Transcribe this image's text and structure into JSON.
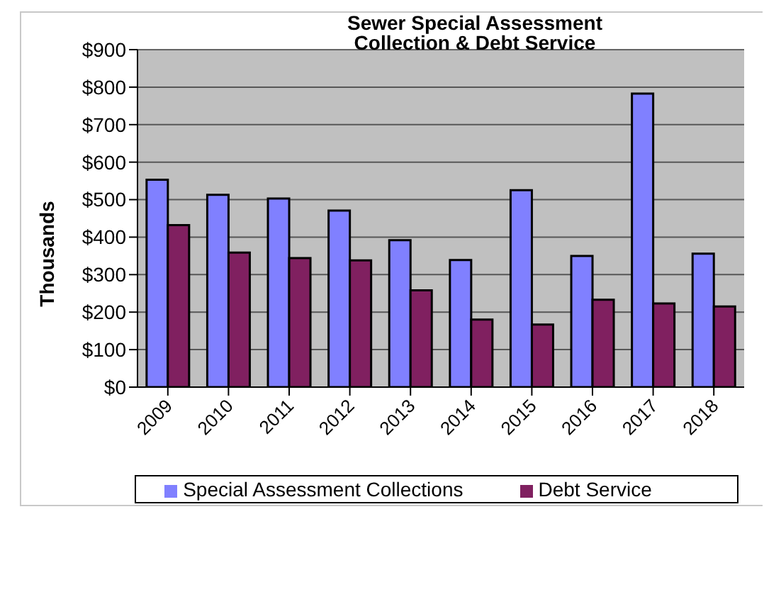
{
  "chart_data": {
    "type": "bar",
    "title": "Sewer Special Assessment\nCollection & Debt Service",
    "ylabel": "Thousands",
    "categories": [
      "2009",
      "2010",
      "2011",
      "2012",
      "2013",
      "2014",
      "2015",
      "2016",
      "2017",
      "2018"
    ],
    "series": [
      {
        "name": "Special Assessment Collections",
        "color": "#8080ff",
        "values": [
          553,
          513,
          503,
          471,
          392,
          339,
          525,
          350,
          783,
          356
        ]
      },
      {
        "name": "Debt Service",
        "color": "#802060",
        "values": [
          432,
          359,
          344,
          338,
          258,
          180,
          167,
          233,
          223,
          215
        ]
      }
    ],
    "ylim": [
      0,
      900
    ],
    "yticks": [
      {
        "value": 0,
        "label": "$0"
      },
      {
        "value": 100,
        "label": "$100"
      },
      {
        "value": 200,
        "label": "$200"
      },
      {
        "value": 300,
        "label": "$300"
      },
      {
        "value": 400,
        "label": "$400"
      },
      {
        "value": 500,
        "label": "$500"
      },
      {
        "value": 600,
        "label": "$600"
      },
      {
        "value": 700,
        "label": "$700"
      },
      {
        "value": 800,
        "label": "$800"
      },
      {
        "value": 900,
        "label": "$900"
      }
    ],
    "grid": "y",
    "legend": "bottom"
  }
}
